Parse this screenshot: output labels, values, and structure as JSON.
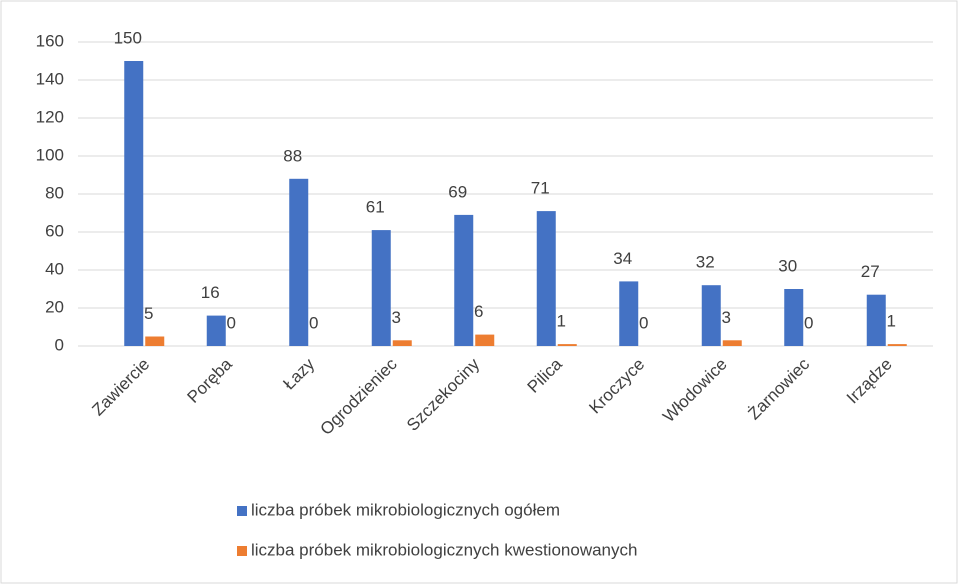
{
  "chart_data": {
    "type": "bar",
    "categories": [
      "Zawiercie",
      "Poręba",
      "Łazy",
      "Ogrodzieniec",
      "Szczekociny",
      "Pilica",
      "Kroczyce",
      "Włodowice",
      "Żarnowiec",
      "Irządze"
    ],
    "series": [
      {
        "name": "liczba próbek mikrobiologicznych ogółem",
        "color": "#4472c4",
        "values": [
          150,
          16,
          88,
          61,
          69,
          71,
          34,
          32,
          30,
          27
        ]
      },
      {
        "name": "liczba próbek mikrobiologicznych kwestionowanych",
        "color": "#ed7d31",
        "values": [
          5,
          0,
          0,
          3,
          6,
          1,
          0,
          3,
          0,
          1
        ]
      }
    ],
    "ylim": [
      0,
      160
    ],
    "yticks": [
      0,
      20,
      40,
      60,
      80,
      100,
      120,
      140,
      160
    ],
    "grid": true,
    "legend": "bottom"
  }
}
